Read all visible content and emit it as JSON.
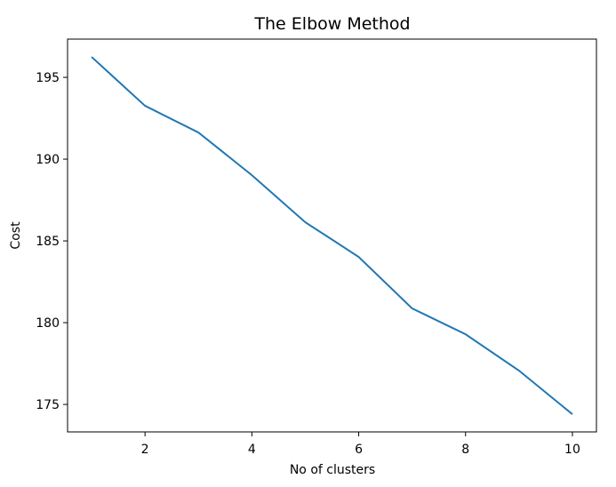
{
  "chart_data": {
    "type": "line",
    "title": "The Elbow Method",
    "x_label": "No of clusters",
    "y_label": "Cost",
    "x": [
      1,
      2,
      3,
      4,
      5,
      6,
      7,
      8,
      9,
      10
    ],
    "series": [
      {
        "name": "Cost",
        "color": "#1f77b4",
        "values": [
          196.25,
          193.26,
          191.63,
          189.02,
          186.14,
          184.02,
          180.87,
          179.29,
          177.07,
          174.4
        ]
      }
    ],
    "xlim": [
      0.55,
      10.45
    ],
    "xticks": [
      2,
      4,
      6,
      8,
      10
    ],
    "ylim": [
      173.32,
      197.34
    ],
    "yticks": [
      175,
      180,
      185,
      190,
      195
    ]
  }
}
